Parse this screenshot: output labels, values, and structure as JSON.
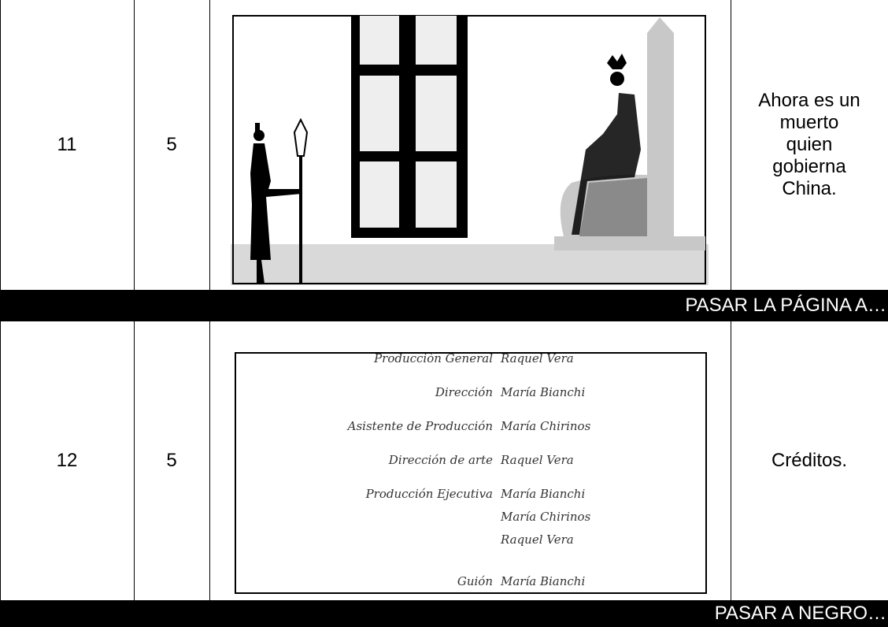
{
  "rows": [
    {
      "shot": "11",
      "duration": "5",
      "description": [
        "Ahora es un",
        "muerto",
        "quien",
        "gobierna",
        "China."
      ],
      "transition": "PASAR LA PÁGINA A…"
    },
    {
      "shot": "12",
      "duration": "5",
      "credits": [
        {
          "role": "Producción General",
          "names": [
            "Raquel Vera"
          ]
        },
        {
          "role": "Dirección",
          "names": [
            "María Bianchi"
          ]
        },
        {
          "role": "Asistente de Producción",
          "names": [
            "María Chirinos"
          ]
        },
        {
          "role": "Dirección de arte",
          "names": [
            "Raquel Vera"
          ]
        },
        {
          "role": "Producción Ejecutiva",
          "names": [
            "María Bianchi",
            "María Chirinos",
            "Raquel Vera"
          ]
        },
        {
          "role": "Guión",
          "names": [
            "María Bianchi"
          ]
        }
      ],
      "description": [
        "Créditos."
      ],
      "transition": "PASAR A NEGRO…"
    }
  ]
}
